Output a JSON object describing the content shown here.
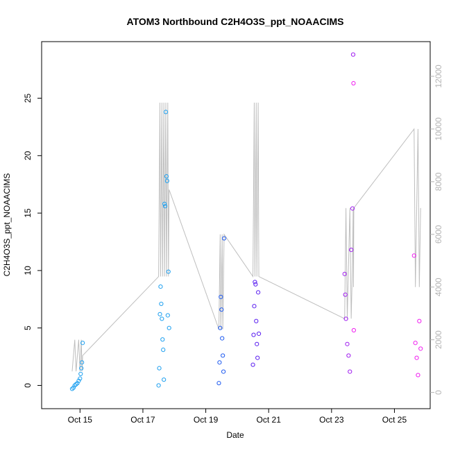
{
  "chart_data": {
    "type": "scatter",
    "title": "ATOM3 Northbound C2H4O3S_ppt_NOAACIMS",
    "xlabel": "Date",
    "ylabel": "C2H4O3S_ppt_NOAACIMS",
    "x_range_days": [
      "Oct 14 00:00",
      "Oct 25 22:00"
    ],
    "ylim": [
      -1.3,
      29.2
    ],
    "y2lim": [
      -300,
      13000
    ],
    "x_ticks": [
      {
        "label": "Oct 15",
        "day": 15
      },
      {
        "label": "Oct 17",
        "day": 17
      },
      {
        "label": "Oct 19",
        "day": 19
      },
      {
        "label": "Oct 21",
        "day": 21
      },
      {
        "label": "Oct 23",
        "day": 23
      },
      {
        "label": "Oct 25",
        "day": 25
      }
    ],
    "y_ticks": [
      0,
      5,
      10,
      15,
      20,
      25
    ],
    "y2_ticks": [
      0,
      2000,
      4000,
      6000,
      8000,
      10000,
      12000
    ],
    "marker": "open-circle",
    "color_scale": [
      "#1ea0f0",
      "#1e5af0",
      "#5a1ef0",
      "#a01ef0",
      "#f01ef0"
    ],
    "secondary_line_color": "#bebebe",
    "series": [
      {
        "x": [
          "Oct 14 18:00",
          "Oct 14 19:00",
          "Oct 14 20:00",
          "Oct 14 21:00",
          "Oct 14 22:00",
          "Oct 14 23:00",
          "Oct 15 00:00",
          "Oct 15 00:30",
          "Oct 15 01:00",
          "Oct 15 01:30",
          "Oct 15 02:00"
        ],
        "y": [
          -0.3,
          -0.2,
          0.0,
          0.1,
          0.2,
          0.4,
          0.6,
          1.0,
          1.5,
          2.0,
          3.7
        ]
      },
      {
        "x": [
          "Oct 17 12:00",
          "Oct 17 12:30",
          "Oct 17 13:00",
          "Oct 17 13:30",
          "Oct 17 14:00",
          "Oct 17 14:30",
          "Oct 17 15:00",
          "Oct 17 15:30",
          "Oct 17 16:00",
          "Oct 17 16:30",
          "Oct 17 17:00",
          "Oct 17 17:30",
          "Oct 17 18:00",
          "Oct 17 18:30",
          "Oct 17 19:00",
          "Oct 17 19:30",
          "Oct 17 20:00"
        ],
        "y": [
          0.0,
          1.5,
          6.2,
          8.6,
          7.1,
          5.8,
          4.0,
          3.1,
          0.5,
          15.8,
          15.6,
          23.8,
          18.2,
          17.8,
          6.1,
          9.9,
          5.0
        ]
      },
      {
        "x": [
          "Oct 19 10:00",
          "Oct 19 10:30",
          "Oct 19 11:00",
          "Oct 19 11:30",
          "Oct 19 12:00",
          "Oct 19 12:30",
          "Oct 19 13:00",
          "Oct 19 13:30",
          "Oct 19 14:00"
        ],
        "y": [
          0.2,
          2.0,
          5.0,
          7.7,
          6.6,
          4.1,
          2.6,
          1.2,
          12.8
        ]
      },
      {
        "x": [
          "Oct 20 12:00",
          "Oct 20 12:30",
          "Oct 20 13:00",
          "Oct 20 13:30",
          "Oct 20 14:00",
          "Oct 20 14:30",
          "Oct 20 15:00",
          "Oct 20 15:30",
          "Oct 20 16:00",
          "Oct 20 16:30"
        ],
        "y": [
          1.8,
          4.4,
          6.9,
          9.0,
          8.8,
          5.6,
          3.6,
          2.4,
          8.1,
          4.5
        ]
      },
      {
        "x": [
          "Oct 23 10:00",
          "Oct 23 10:30",
          "Oct 23 11:00",
          "Oct 23 12:00",
          "Oct 23 13:00",
          "Oct 23 14:00",
          "Oct 23 15:00",
          "Oct 23 16:00",
          "Oct 23 16:30"
        ],
        "y": [
          9.7,
          7.9,
          5.8,
          3.6,
          2.6,
          1.2,
          11.8,
          15.4,
          28.8
        ]
      },
      {
        "x": [
          "Oct 23 16:45",
          "Oct 23 17:00",
          "Oct 25 15:00",
          "Oct 25 16:00",
          "Oct 25 17:00",
          "Oct 25 18:00",
          "Oct 25 19:00",
          "Oct 25 20:00"
        ],
        "y": [
          26.3,
          4.8,
          11.3,
          3.7,
          2.4,
          0.9,
          5.6,
          3.2
        ]
      }
    ]
  }
}
